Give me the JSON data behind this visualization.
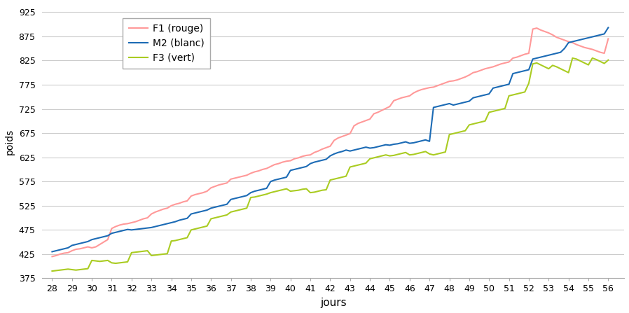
{
  "xlabel": "jours",
  "ylabel": "poids",
  "ylim": [
    375,
    940
  ],
  "xlim": [
    27.5,
    56.8
  ],
  "yticks": [
    375,
    425,
    475,
    525,
    575,
    625,
    675,
    725,
    775,
    825,
    875,
    925
  ],
  "xticks": [
    28,
    29,
    30,
    31,
    32,
    33,
    34,
    35,
    36,
    37,
    38,
    39,
    40,
    41,
    42,
    43,
    44,
    45,
    46,
    47,
    48,
    49,
    50,
    51,
    52,
    53,
    54,
    55,
    56
  ],
  "color_F1": "#FF9999",
  "color_M2": "#1C6BB5",
  "color_F3": "#AACC22",
  "legend_labels": [
    "F1 (rouge)",
    "M2 (blanc)",
    "F3 (vert)"
  ],
  "line_width": 1.5,
  "grid_color": "#CCCCCC",
  "background_color": "#FFFFFF",
  "ylabel_fontsize": 10,
  "xlabel_fontsize": 11,
  "tick_fontsize": 9,
  "legend_fontsize": 10,
  "F1_x": [
    28,
    28.2,
    28.4,
    28.6,
    28.8,
    29,
    29.2,
    29.4,
    29.6,
    29.8,
    30,
    30.2,
    30.4,
    30.6,
    30.8,
    31,
    31.2,
    31.4,
    31.6,
    31.8,
    32,
    32.2,
    32.4,
    32.6,
    32.8,
    33,
    33.2,
    33.4,
    33.6,
    33.8,
    34,
    34.2,
    34.4,
    34.6,
    34.8,
    35,
    35.2,
    35.4,
    35.6,
    35.8,
    36,
    36.2,
    36.4,
    36.6,
    36.8,
    37,
    37.2,
    37.4,
    37.6,
    37.8,
    38,
    38.2,
    38.4,
    38.6,
    38.8,
    39,
    39.2,
    39.4,
    39.6,
    39.8,
    40,
    40.2,
    40.4,
    40.6,
    40.8,
    41,
    41.2,
    41.4,
    41.6,
    41.8,
    42,
    42.2,
    42.4,
    42.6,
    42.8,
    43,
    43.2,
    43.4,
    43.6,
    43.8,
    44,
    44.2,
    44.4,
    44.6,
    44.8,
    45,
    45.2,
    45.4,
    45.6,
    45.8,
    46,
    46.2,
    46.4,
    46.6,
    46.8,
    47,
    47.2,
    47.4,
    47.6,
    47.8,
    48,
    48.2,
    48.4,
    48.6,
    48.8,
    49,
    49.2,
    49.4,
    49.6,
    49.8,
    50,
    50.2,
    50.4,
    50.6,
    50.8,
    51,
    51.2,
    51.4,
    51.6,
    51.8,
    52,
    52.2,
    52.4,
    52.6,
    52.8,
    53,
    53.2,
    53.4,
    53.6,
    53.8,
    54,
    54.2,
    54.4,
    54.6,
    54.8,
    55,
    55.2,
    55.4,
    55.6,
    55.8,
    56
  ],
  "F1_y": [
    420,
    422,
    425,
    427,
    428,
    432,
    435,
    436,
    438,
    440,
    438,
    440,
    445,
    450,
    455,
    478,
    482,
    485,
    487,
    488,
    490,
    492,
    495,
    498,
    500,
    508,
    512,
    515,
    518,
    520,
    525,
    528,
    530,
    533,
    535,
    545,
    548,
    550,
    552,
    555,
    562,
    565,
    568,
    570,
    572,
    580,
    582,
    584,
    586,
    588,
    592,
    595,
    597,
    600,
    602,
    606,
    610,
    612,
    615,
    617,
    618,
    622,
    624,
    627,
    629,
    630,
    635,
    638,
    642,
    645,
    648,
    660,
    665,
    668,
    671,
    674,
    690,
    695,
    698,
    701,
    704,
    715,
    718,
    722,
    726,
    730,
    742,
    745,
    748,
    750,
    752,
    758,
    762,
    765,
    767,
    769,
    770,
    773,
    776,
    779,
    782,
    783,
    785,
    788,
    791,
    795,
    800,
    802,
    805,
    808,
    810,
    812,
    815,
    818,
    820,
    822,
    830,
    832,
    835,
    838,
    840,
    890,
    892,
    888,
    885,
    882,
    878,
    873,
    870,
    867,
    864,
    862,
    858,
    855,
    852,
    850,
    848,
    845,
    842,
    840,
    870
  ],
  "M2_x": [
    28,
    28.2,
    28.4,
    28.6,
    28.8,
    29,
    29.2,
    29.4,
    29.6,
    29.8,
    30,
    30.2,
    30.4,
    30.6,
    30.8,
    31,
    31.2,
    31.4,
    31.6,
    31.8,
    32,
    32.2,
    32.4,
    32.6,
    32.8,
    33,
    33.2,
    33.4,
    33.6,
    33.8,
    34,
    34.2,
    34.4,
    34.6,
    34.8,
    35,
    35.2,
    35.4,
    35.6,
    35.8,
    36,
    36.2,
    36.4,
    36.6,
    36.8,
    37,
    37.2,
    37.4,
    37.6,
    37.8,
    38,
    38.2,
    38.4,
    38.6,
    38.8,
    39,
    39.2,
    39.4,
    39.6,
    39.8,
    40,
    40.2,
    40.4,
    40.6,
    40.8,
    41,
    41.2,
    41.4,
    41.6,
    41.8,
    42,
    42.2,
    42.4,
    42.6,
    42.8,
    43,
    43.2,
    43.4,
    43.6,
    43.8,
    44,
    44.2,
    44.4,
    44.6,
    44.8,
    45,
    45.2,
    45.4,
    45.6,
    45.8,
    46,
    46.2,
    46.4,
    46.6,
    46.8,
    47,
    47.2,
    47.4,
    47.6,
    47.8,
    48,
    48.2,
    48.4,
    48.6,
    48.8,
    49,
    49.2,
    49.4,
    49.6,
    49.8,
    50,
    50.2,
    50.4,
    50.6,
    50.8,
    51,
    51.2,
    51.4,
    51.6,
    51.8,
    52,
    52.2,
    52.4,
    52.6,
    52.8,
    53,
    53.2,
    53.4,
    53.6,
    53.8,
    54,
    54.2,
    54.4,
    54.6,
    54.8,
    55,
    55.2,
    55.4,
    55.6,
    55.8,
    56
  ],
  "M2_y": [
    430,
    432,
    434,
    436,
    438,
    443,
    445,
    447,
    449,
    451,
    455,
    457,
    459,
    461,
    463,
    468,
    470,
    472,
    474,
    476,
    475,
    476,
    477,
    478,
    479,
    480,
    482,
    484,
    486,
    488,
    490,
    492,
    495,
    497,
    499,
    508,
    510,
    512,
    514,
    516,
    520,
    522,
    524,
    526,
    528,
    538,
    540,
    542,
    544,
    546,
    552,
    555,
    557,
    559,
    561,
    575,
    578,
    580,
    582,
    584,
    598,
    600,
    602,
    604,
    606,
    612,
    615,
    617,
    619,
    621,
    628,
    632,
    635,
    637,
    640,
    638,
    640,
    642,
    644,
    646,
    644,
    645,
    647,
    649,
    651,
    650,
    652,
    653,
    655,
    657,
    654,
    655,
    657,
    659,
    661,
    658,
    728,
    730,
    732,
    734,
    736,
    733,
    735,
    737,
    739,
    741,
    748,
    750,
    752,
    754,
    756,
    768,
    770,
    772,
    774,
    776,
    798,
    800,
    802,
    804,
    806,
    828,
    830,
    832,
    834,
    836,
    838,
    840,
    842,
    850,
    862,
    864,
    866,
    868,
    870,
    872,
    874,
    876,
    878,
    880,
    893
  ],
  "F3_x": [
    28,
    28.2,
    28.4,
    28.6,
    28.8,
    29,
    29.2,
    29.4,
    29.6,
    29.8,
    30,
    30.2,
    30.4,
    30.6,
    30.8,
    31,
    31.2,
    31.4,
    31.6,
    31.8,
    32,
    32.2,
    32.4,
    32.6,
    32.8,
    33,
    33.2,
    33.4,
    33.6,
    33.8,
    34,
    34.2,
    34.4,
    34.6,
    34.8,
    35,
    35.2,
    35.4,
    35.6,
    35.8,
    36,
    36.2,
    36.4,
    36.6,
    36.8,
    37,
    37.2,
    37.4,
    37.6,
    37.8,
    38,
    38.2,
    38.4,
    38.6,
    38.8,
    39,
    39.2,
    39.4,
    39.6,
    39.8,
    40,
    40.2,
    40.4,
    40.6,
    40.8,
    41,
    41.2,
    41.4,
    41.6,
    41.8,
    42,
    42.2,
    42.4,
    42.6,
    42.8,
    43,
    43.2,
    43.4,
    43.6,
    43.8,
    44,
    44.2,
    44.4,
    44.6,
    44.8,
    45,
    45.2,
    45.4,
    45.6,
    45.8,
    46,
    46.2,
    46.4,
    46.6,
    46.8,
    47,
    47.2,
    47.4,
    47.6,
    47.8,
    48,
    48.2,
    48.4,
    48.6,
    48.8,
    49,
    49.2,
    49.4,
    49.6,
    49.8,
    50,
    50.2,
    50.4,
    50.6,
    50.8,
    51,
    51.2,
    51.4,
    51.6,
    51.8,
    52,
    52.2,
    52.4,
    52.6,
    52.8,
    53,
    53.2,
    53.4,
    53.6,
    53.8,
    54,
    54.2,
    54.4,
    54.6,
    54.8,
    55,
    55.2,
    55.4,
    55.6,
    55.8,
    56
  ],
  "F3_y": [
    390,
    391,
    392,
    393,
    394,
    393,
    392,
    393,
    394,
    395,
    412,
    411,
    410,
    411,
    412,
    407,
    406,
    407,
    408,
    409,
    428,
    429,
    430,
    431,
    432,
    422,
    423,
    424,
    425,
    426,
    452,
    453,
    455,
    457,
    459,
    475,
    477,
    479,
    481,
    483,
    498,
    500,
    502,
    504,
    506,
    512,
    514,
    516,
    518,
    520,
    542,
    543,
    545,
    547,
    549,
    552,
    554,
    556,
    558,
    560,
    555,
    556,
    557,
    559,
    560,
    552,
    553,
    555,
    557,
    558,
    578,
    580,
    582,
    584,
    586,
    605,
    607,
    609,
    611,
    613,
    622,
    624,
    626,
    628,
    630,
    628,
    629,
    631,
    633,
    635,
    630,
    631,
    633,
    635,
    637,
    632,
    630,
    632,
    634,
    636,
    672,
    674,
    676,
    678,
    680,
    692,
    694,
    696,
    698,
    700,
    718,
    720,
    722,
    724,
    726,
    752,
    754,
    756,
    758,
    760,
    778,
    818,
    820,
    816,
    812,
    808,
    815,
    812,
    808,
    804,
    800,
    830,
    828,
    824,
    820,
    816,
    830,
    827,
    823,
    819,
    826
  ]
}
